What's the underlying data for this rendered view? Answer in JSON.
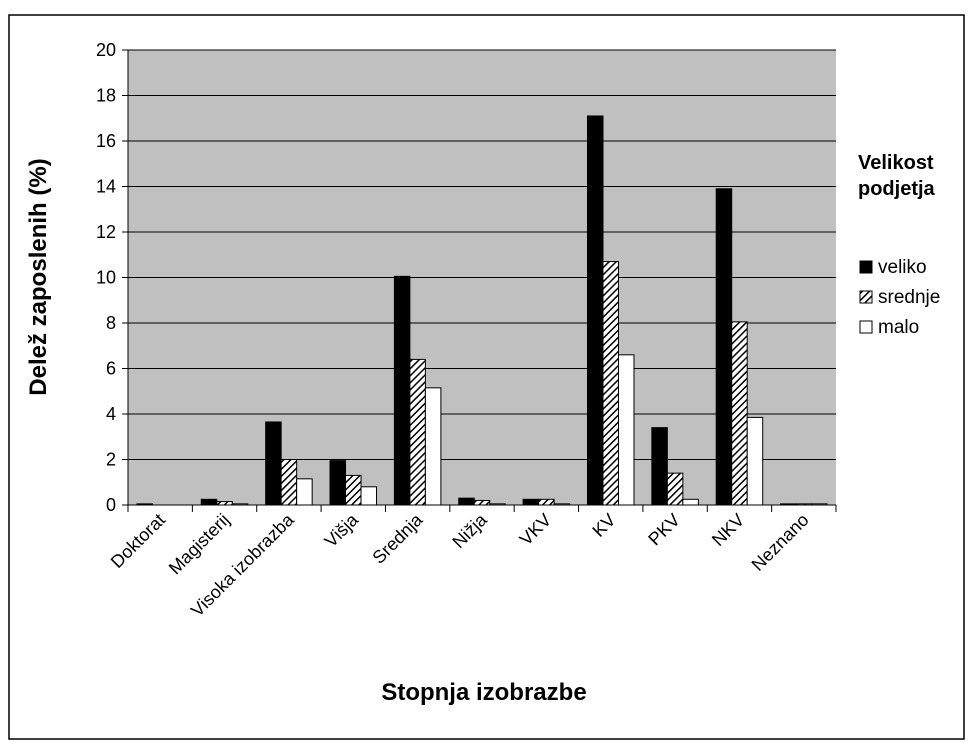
{
  "chart_data": {
    "type": "bar",
    "categories": [
      "Doktorat",
      "Magisterij",
      "Visoka izobrazba",
      "Višja",
      "Srednja",
      "Nižja",
      "VKV",
      "KV",
      "PKV",
      "NKV",
      "Neznano"
    ],
    "series": [
      {
        "name": "veliko",
        "color": "#000000",
        "values": [
          0.05,
          0.25,
          3.65,
          1.95,
          10.05,
          0.3,
          0.25,
          17.1,
          3.4,
          13.9,
          0.05
        ]
      },
      {
        "name": "srednje",
        "color": "#000000",
        "pattern": "hatch",
        "values": [
          0,
          0.15,
          2.0,
          1.3,
          6.4,
          0.2,
          0.25,
          10.7,
          1.4,
          8.05,
          0.05
        ]
      },
      {
        "name": "malo",
        "color": "#ffffff",
        "values": [
          0,
          0.05,
          1.15,
          0.8,
          5.15,
          0.05,
          0.05,
          6.6,
          0.25,
          3.85,
          0.05
        ]
      }
    ],
    "xlabel": "Stopnja izobrazbe",
    "ylabel": "Delež zaposlenih (%)",
    "legend_title": "Velikost podjetja",
    "ylim": [
      0,
      20
    ],
    "yticks": [
      0,
      2,
      4,
      6,
      8,
      10,
      12,
      14,
      16,
      18,
      20
    ],
    "grid": true,
    "plot_background": "#c0c0c0",
    "legend": "right"
  }
}
